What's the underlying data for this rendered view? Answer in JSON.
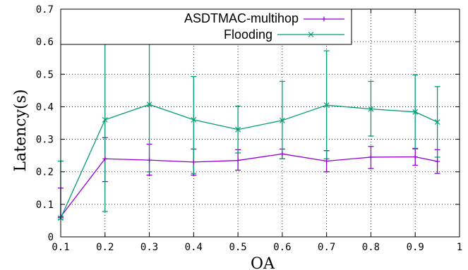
{
  "chart_data": {
    "type": "line",
    "title": "",
    "xlabel": "OA",
    "ylabel": "Latency(s)",
    "xlim": [
      0.1,
      1.0
    ],
    "ylim": [
      0,
      0.7
    ],
    "xticks": [
      "0.1",
      "0.2",
      "0.3",
      "0.4",
      "0.5",
      "0.6",
      "0.7",
      "0.8",
      "0.9",
      "1"
    ],
    "yticks": [
      "0",
      "0.1",
      "0.2",
      "0.3",
      "0.4",
      "0.5",
      "0.6",
      "0.7"
    ],
    "grid": true,
    "legend_position": "top-left",
    "x": [
      0.1,
      0.2,
      0.3,
      0.4,
      0.5,
      0.6,
      0.7,
      0.8,
      0.9,
      0.95
    ],
    "series": [
      {
        "name": "ASDTMAC-multihop",
        "color": "#9400d3",
        "marker": "plus",
        "values": [
          0.062,
          0.24,
          0.236,
          0.23,
          0.235,
          0.255,
          0.233,
          0.245,
          0.246,
          0.232
        ],
        "err_low": [
          0.06,
          0.17,
          0.19,
          0.19,
          0.205,
          0.24,
          0.2,
          0.21,
          0.22,
          0.195
        ],
        "err_high": [
          0.15,
          0.305,
          0.285,
          0.27,
          0.268,
          0.27,
          0.265,
          0.278,
          0.272,
          0.268
        ]
      },
      {
        "name": "Flooding",
        "color": "#009e73",
        "marker": "x",
        "values": [
          0.058,
          0.36,
          0.407,
          0.36,
          0.33,
          0.358,
          0.405,
          0.393,
          0.384,
          0.353
        ],
        "err_low": [
          0.055,
          0.078,
          0.2,
          0.195,
          0.258,
          0.24,
          0.24,
          0.31,
          0.27,
          0.245
        ],
        "err_high": [
          0.233,
          0.642,
          0.595,
          0.493,
          0.402,
          0.478,
          0.572,
          0.478,
          0.498,
          0.462
        ]
      }
    ]
  }
}
